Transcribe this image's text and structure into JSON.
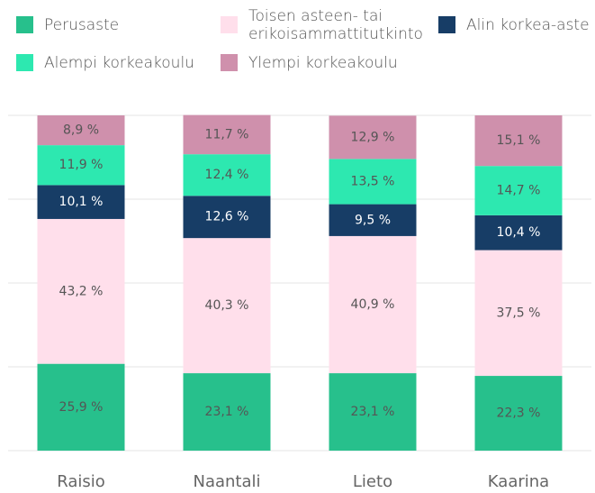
{
  "chart_data": {
    "type": "stacked-bar",
    "categories": [
      "Raisio",
      "Naantali",
      "Lieto",
      "Kaarina"
    ],
    "series": [
      {
        "name": "Perusaste",
        "color": "#27c08c",
        "values": [
          25.9,
          23.1,
          23.1,
          22.3
        ],
        "value_labels": [
          "25,9 %",
          "23,1 %",
          "23,1 %",
          "22,3 %"
        ]
      },
      {
        "name": "Toisen asteen- tai erikoisammattitutkinto",
        "color": "#ffdfeb",
        "values": [
          43.2,
          40.3,
          40.9,
          37.5
        ],
        "value_labels": [
          "43,2 %",
          "40,3 %",
          "40,9 %",
          "37,5 %"
        ]
      },
      {
        "name": "Alin korkea-aste",
        "color": "#173d66",
        "values": [
          10.1,
          12.6,
          9.5,
          10.4
        ],
        "value_labels": [
          "10,1 %",
          "12,6 %",
          "9,5 %",
          "10,4 %"
        ]
      },
      {
        "name": "Alempi korkeakoulu",
        "color": "#2de8b0",
        "values": [
          11.9,
          12.4,
          13.5,
          14.7
        ],
        "value_labels": [
          "11,9 %",
          "12,4 %",
          "13,5 %",
          "14,7 %"
        ]
      },
      {
        "name": "Ylempi korkeakoulu",
        "color": "#cf90ac",
        "values": [
          8.9,
          11.7,
          12.9,
          15.1
        ],
        "value_labels": [
          "8,9 %",
          "11,7 %",
          "12,9 %",
          "15,1 %"
        ]
      }
    ],
    "ylim": [
      0,
      100
    ],
    "yticks": [
      0,
      25,
      50,
      75,
      100
    ],
    "grid": true
  }
}
